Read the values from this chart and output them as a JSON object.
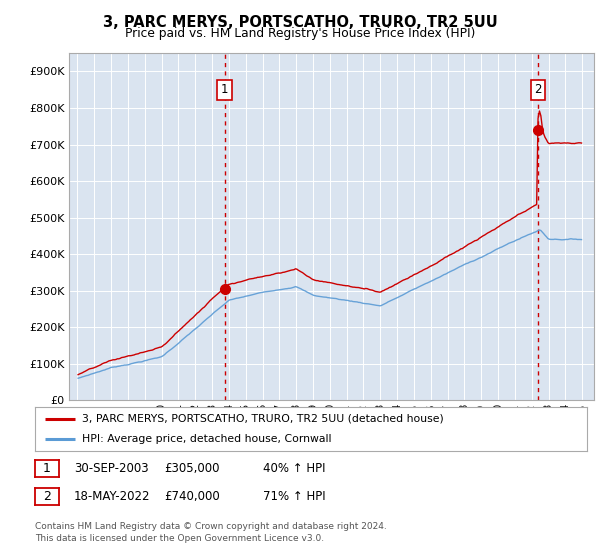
{
  "title": "3, PARC MERYS, PORTSCATHO, TRURO, TR2 5UU",
  "subtitle": "Price paid vs. HM Land Registry's House Price Index (HPI)",
  "ylim": [
    0,
    950000
  ],
  "yticks": [
    0,
    100000,
    200000,
    300000,
    400000,
    500000,
    600000,
    700000,
    800000,
    900000
  ],
  "ytick_labels": [
    "£0",
    "£100K",
    "£200K",
    "£300K",
    "£400K",
    "£500K",
    "£600K",
    "£700K",
    "£800K",
    "£900K"
  ],
  "xlim_min": 1994.5,
  "xlim_max": 2025.7,
  "plot_bg_color": "#dae4f0",
  "outer_bg_color": "#ffffff",
  "red_color": "#cc0000",
  "blue_color": "#5b9bd5",
  "grid_color": "#ffffff",
  "transaction1_x": 2003.747,
  "transaction1_y": 305000,
  "transaction2_x": 2022.37,
  "transaction2_y": 740000,
  "legend_line1": "3, PARC MERYS, PORTSCATHO, TRURO, TR2 5UU (detached house)",
  "legend_line2": "HPI: Average price, detached house, Cornwall",
  "note1_num": "1",
  "note1_date": "30-SEP-2003",
  "note1_price": "£305,000",
  "note1_hpi": "40% ↑ HPI",
  "note2_num": "2",
  "note2_date": "18-MAY-2022",
  "note2_price": "£740,000",
  "note2_hpi": "71% ↑ HPI",
  "footer_line1": "Contains HM Land Registry data © Crown copyright and database right 2024.",
  "footer_line2": "This data is licensed under the Open Government Licence v3.0."
}
